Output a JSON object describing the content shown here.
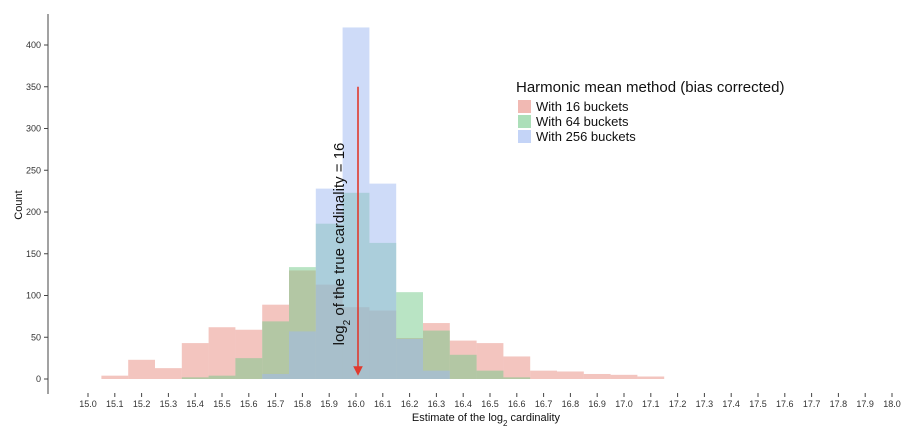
{
  "chart_data": {
    "type": "bar",
    "title": "",
    "xlabel": "Estimate of the log",
    "xlabel_sub": "2",
    "xlabel_suffix": " cardinality",
    "ylabel": "Count",
    "xlim": [
      14.95,
      18.05
    ],
    "ylim": [
      0,
      420
    ],
    "x_ticks": [
      "15.0",
      "15.1",
      "15.2",
      "15.3",
      "15.4",
      "15.5",
      "15.6",
      "15.7",
      "15.8",
      "15.9",
      "16.0",
      "16.1",
      "16.2",
      "16.3",
      "16.4",
      "16.5",
      "16.6",
      "16.7",
      "16.8",
      "16.9",
      "17.0",
      "17.1",
      "17.2",
      "17.3",
      "17.4",
      "17.5",
      "17.6",
      "17.7",
      "17.8",
      "17.9",
      "18.0"
    ],
    "y_ticks": [
      0,
      50,
      100,
      150,
      200,
      250,
      300,
      350,
      400
    ],
    "grid": false,
    "bin_width": 0.1,
    "legend": {
      "title": "Harmonic mean method (bias corrected)",
      "placement": "top-right"
    },
    "series": [
      {
        "name": "With 16 buckets",
        "color": "#e88b80",
        "x": [
          15.1,
          15.2,
          15.3,
          15.4,
          15.5,
          15.6,
          15.7,
          15.8,
          15.9,
          16.0,
          16.1,
          16.2,
          16.3,
          16.4,
          16.5,
          16.6,
          16.7,
          16.8,
          16.9,
          17.0,
          17.1
        ],
        "values": [
          4,
          23,
          13,
          43,
          62,
          59,
          89,
          130,
          113,
          86,
          82,
          49,
          67,
          46,
          43,
          27,
          10,
          9,
          6,
          5,
          3
        ]
      },
      {
        "name": "With 64 buckets",
        "color": "#74c98a",
        "x": [
          15.4,
          15.5,
          15.6,
          15.7,
          15.8,
          15.9,
          16.0,
          16.1,
          16.2,
          16.3,
          16.4,
          16.5,
          16.6
        ],
        "values": [
          2,
          4,
          25,
          69,
          134,
          186,
          223,
          163,
          104,
          58,
          29,
          10,
          2
        ]
      },
      {
        "name": "With 256 buckets",
        "color": "#9db8f2",
        "x": [
          15.7,
          15.8,
          15.9,
          16.0,
          16.1,
          16.2,
          16.3
        ],
        "values": [
          6,
          57,
          228,
          421,
          234,
          48,
          10
        ]
      }
    ],
    "annotation": {
      "text_prefix": "log",
      "text_sub": "2",
      "text_suffix": " of the true cardinality = 16",
      "x": 16.0,
      "y_top": 350,
      "line_color": "#e03a2e"
    }
  }
}
